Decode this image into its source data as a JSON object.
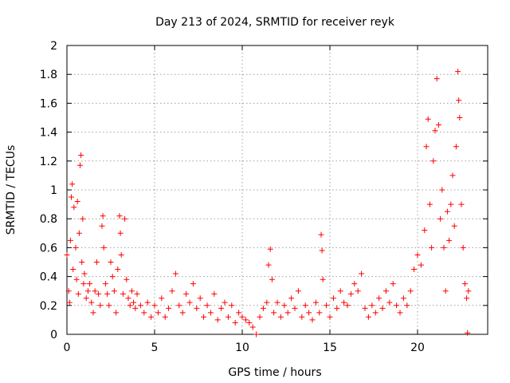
{
  "chart_data": {
    "type": "scatter",
    "title": "Day 213 of 2024, SRMTID for receiver reyk",
    "xlabel": "GPS time / hours",
    "ylabel": "SRMTID / TECUs",
    "xlim": [
      0,
      24
    ],
    "ylim": [
      0,
      2
    ],
    "xticks": [
      0,
      5,
      10,
      15,
      20
    ],
    "yticks": [
      0,
      0.2,
      0.4,
      0.6,
      0.8,
      1,
      1.2,
      1.4,
      1.6,
      1.8,
      2
    ],
    "grid": true,
    "marker": "+",
    "color": "#ff0000",
    "series": [
      {
        "name": "SRMTID",
        "points": [
          [
            0.0,
            0.55
          ],
          [
            0.1,
            0.3
          ],
          [
            0.15,
            0.22
          ],
          [
            0.2,
            0.65
          ],
          [
            0.25,
            0.95
          ],
          [
            0.3,
            1.04
          ],
          [
            0.35,
            0.45
          ],
          [
            0.4,
            0.88
          ],
          [
            0.5,
            0.6
          ],
          [
            0.55,
            0.38
          ],
          [
            0.6,
            0.92
          ],
          [
            0.65,
            0.28
          ],
          [
            0.7,
            0.7
          ],
          [
            0.75,
            1.17
          ],
          [
            0.8,
            1.24
          ],
          [
            0.85,
            0.5
          ],
          [
            0.9,
            0.8
          ],
          [
            0.95,
            0.35
          ],
          [
            1.0,
            0.42
          ],
          [
            1.1,
            0.25
          ],
          [
            1.2,
            0.3
          ],
          [
            1.3,
            0.35
          ],
          [
            1.4,
            0.22
          ],
          [
            1.5,
            0.15
          ],
          [
            1.6,
            0.3
          ],
          [
            1.7,
            0.5
          ],
          [
            1.8,
            0.28
          ],
          [
            1.9,
            0.2
          ],
          [
            2.0,
            0.75
          ],
          [
            2.05,
            0.82
          ],
          [
            2.1,
            0.6
          ],
          [
            2.2,
            0.35
          ],
          [
            2.3,
            0.28
          ],
          [
            2.4,
            0.2
          ],
          [
            2.5,
            0.5
          ],
          [
            2.6,
            0.4
          ],
          [
            2.7,
            0.3
          ],
          [
            2.8,
            0.15
          ],
          [
            2.9,
            0.45
          ],
          [
            3.0,
            0.82
          ],
          [
            3.05,
            0.7
          ],
          [
            3.1,
            0.55
          ],
          [
            3.2,
            0.28
          ],
          [
            3.3,
            0.8
          ],
          [
            3.4,
            0.38
          ],
          [
            3.5,
            0.25
          ],
          [
            3.6,
            0.2
          ],
          [
            3.7,
            0.3
          ],
          [
            3.8,
            0.22
          ],
          [
            3.9,
            0.18
          ],
          [
            4.0,
            0.28
          ],
          [
            4.2,
            0.2
          ],
          [
            4.4,
            0.15
          ],
          [
            4.6,
            0.22
          ],
          [
            4.8,
            0.12
          ],
          [
            5.0,
            0.2
          ],
          [
            5.2,
            0.15
          ],
          [
            5.4,
            0.25
          ],
          [
            5.6,
            0.12
          ],
          [
            5.8,
            0.18
          ],
          [
            6.0,
            0.3
          ],
          [
            6.2,
            0.42
          ],
          [
            6.4,
            0.2
          ],
          [
            6.6,
            0.15
          ],
          [
            6.8,
            0.28
          ],
          [
            7.0,
            0.22
          ],
          [
            7.2,
            0.35
          ],
          [
            7.4,
            0.18
          ],
          [
            7.6,
            0.25
          ],
          [
            7.8,
            0.12
          ],
          [
            8.0,
            0.2
          ],
          [
            8.2,
            0.15
          ],
          [
            8.4,
            0.28
          ],
          [
            8.6,
            0.1
          ],
          [
            8.8,
            0.18
          ],
          [
            9.0,
            0.22
          ],
          [
            9.2,
            0.12
          ],
          [
            9.4,
            0.2
          ],
          [
            9.6,
            0.08
          ],
          [
            9.8,
            0.15
          ],
          [
            10.0,
            0.12
          ],
          [
            10.2,
            0.1
          ],
          [
            10.4,
            0.08
          ],
          [
            10.6,
            0.05
          ],
          [
            10.8,
            0.0
          ],
          [
            11.0,
            0.12
          ],
          [
            11.2,
            0.18
          ],
          [
            11.4,
            0.22
          ],
          [
            11.5,
            0.48
          ],
          [
            11.6,
            0.59
          ],
          [
            11.7,
            0.38
          ],
          [
            11.8,
            0.15
          ],
          [
            12.0,
            0.22
          ],
          [
            12.2,
            0.12
          ],
          [
            12.4,
            0.2
          ],
          [
            12.6,
            0.15
          ],
          [
            12.8,
            0.25
          ],
          [
            13.0,
            0.18
          ],
          [
            13.2,
            0.3
          ],
          [
            13.4,
            0.12
          ],
          [
            13.6,
            0.2
          ],
          [
            13.8,
            0.15
          ],
          [
            14.0,
            0.1
          ],
          [
            14.2,
            0.22
          ],
          [
            14.4,
            0.15
          ],
          [
            14.5,
            0.69
          ],
          [
            14.55,
            0.58
          ],
          [
            14.6,
            0.38
          ],
          [
            14.8,
            0.2
          ],
          [
            15.0,
            0.12
          ],
          [
            15.2,
            0.25
          ],
          [
            15.4,
            0.18
          ],
          [
            15.6,
            0.3
          ],
          [
            15.8,
            0.22
          ],
          [
            16.0,
            0.2
          ],
          [
            16.2,
            0.28
          ],
          [
            16.4,
            0.35
          ],
          [
            16.6,
            0.3
          ],
          [
            16.8,
            0.42
          ],
          [
            17.0,
            0.18
          ],
          [
            17.2,
            0.12
          ],
          [
            17.4,
            0.2
          ],
          [
            17.6,
            0.15
          ],
          [
            17.8,
            0.25
          ],
          [
            18.0,
            0.18
          ],
          [
            18.2,
            0.3
          ],
          [
            18.4,
            0.22
          ],
          [
            18.6,
            0.35
          ],
          [
            18.8,
            0.2
          ],
          [
            19.0,
            0.15
          ],
          [
            19.2,
            0.25
          ],
          [
            19.4,
            0.2
          ],
          [
            19.6,
            0.3
          ],
          [
            19.8,
            0.45
          ],
          [
            20.0,
            0.55
          ],
          [
            20.2,
            0.48
          ],
          [
            20.4,
            0.72
          ],
          [
            20.5,
            1.3
          ],
          [
            20.6,
            1.49
          ],
          [
            20.7,
            0.9
          ],
          [
            20.8,
            0.6
          ],
          [
            20.9,
            1.2
          ],
          [
            21.0,
            1.41
          ],
          [
            21.1,
            1.77
          ],
          [
            21.2,
            1.45
          ],
          [
            21.3,
            0.8
          ],
          [
            21.4,
            1.0
          ],
          [
            21.5,
            0.6
          ],
          [
            21.6,
            0.3
          ],
          [
            21.7,
            0.85
          ],
          [
            21.8,
            0.65
          ],
          [
            21.9,
            0.9
          ],
          [
            22.0,
            1.1
          ],
          [
            22.1,
            0.75
          ],
          [
            22.2,
            1.3
          ],
          [
            22.3,
            1.82
          ],
          [
            22.35,
            1.62
          ],
          [
            22.4,
            1.5
          ],
          [
            22.5,
            0.9
          ],
          [
            22.6,
            0.6
          ],
          [
            22.7,
            0.35
          ],
          [
            22.8,
            0.25
          ],
          [
            22.85,
            0.01
          ],
          [
            22.9,
            0.3
          ]
        ]
      }
    ]
  }
}
